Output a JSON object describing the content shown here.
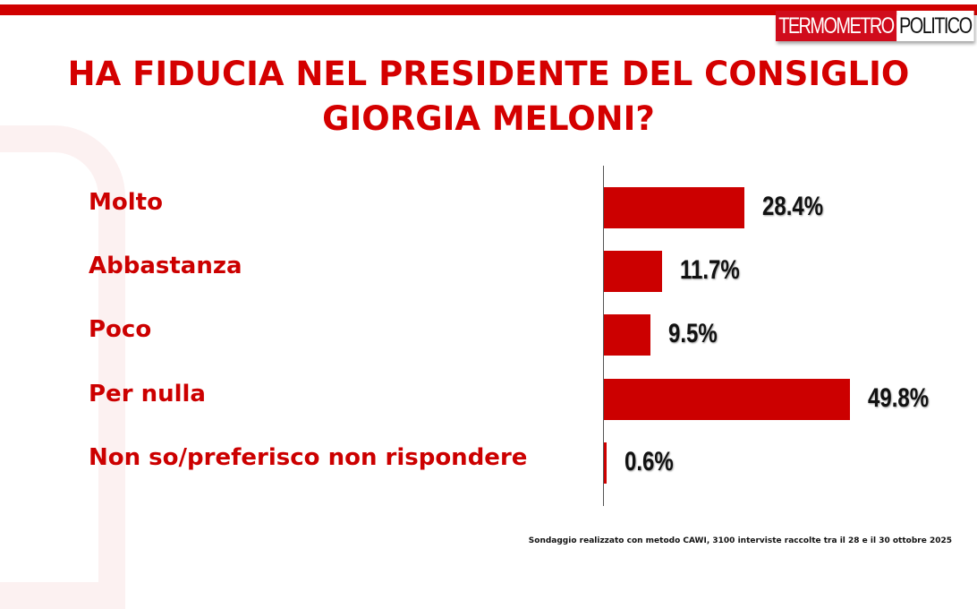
{
  "logo": {
    "part1": "TERMOMETRO",
    "part2": "POLITICO"
  },
  "title": "HA FIDUCIA NEL PRESIDENTE DEL CONSIGLIO GIORGIA MELONI?",
  "footer": "Sondaggio realizzato con metodo CAWI, 3100 interviste raccolte tra il 28 e il 30 ottobre  2025",
  "colors": {
    "accent": "#cc0000"
  },
  "chart_data": {
    "type": "bar",
    "orientation": "horizontal",
    "categories": [
      "Molto",
      "Abbastanza",
      "Poco",
      "Per nulla",
      "Non so/preferisco non rispondere"
    ],
    "values": [
      28.4,
      11.7,
      9.5,
      49.8,
      0.6
    ],
    "labels": [
      "28.4%",
      "11.7%",
      "9.5%",
      "49.8%",
      "0.6%"
    ],
    "unit": "%",
    "grid": false
  }
}
